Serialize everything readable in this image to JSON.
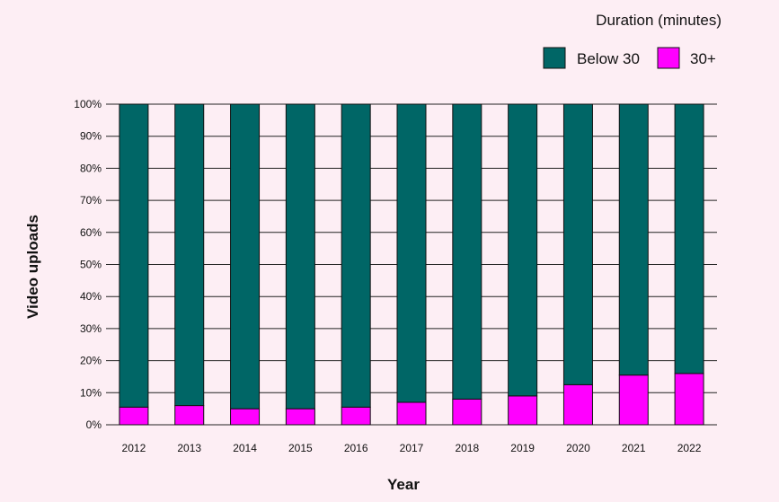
{
  "chart_data": {
    "type": "bar",
    "stacked": true,
    "categories": [
      "2012",
      "2013",
      "2014",
      "2015",
      "2016",
      "2017",
      "2018",
      "2019",
      "2020",
      "2021",
      "2022"
    ],
    "series": [
      {
        "name": "30+",
        "color": "#ff00ff",
        "values": [
          5.5,
          6,
          5,
          5,
          5.5,
          7,
          8,
          9,
          12.5,
          15.5,
          16
        ]
      },
      {
        "name": "Below 30",
        "color": "#006666",
        "values": [
          94.5,
          94,
          95,
          95,
          94.5,
          93,
          92,
          91,
          87.5,
          84.5,
          84
        ]
      }
    ],
    "y_ticks": [
      "0%",
      "10%",
      "20%",
      "30%",
      "40%",
      "50%",
      "60%",
      "70%",
      "80%",
      "90%",
      "100%"
    ],
    "ylim": [
      0,
      100
    ],
    "xlabel": "Year",
    "ylabel": "Video uploads",
    "legend": {
      "title": "Duration (minutes)",
      "items": [
        {
          "label": "Below 30",
          "color": "#006666"
        },
        {
          "label": "30+",
          "color": "#ff00ff"
        }
      ],
      "position": "top-right"
    },
    "grid": true
  }
}
